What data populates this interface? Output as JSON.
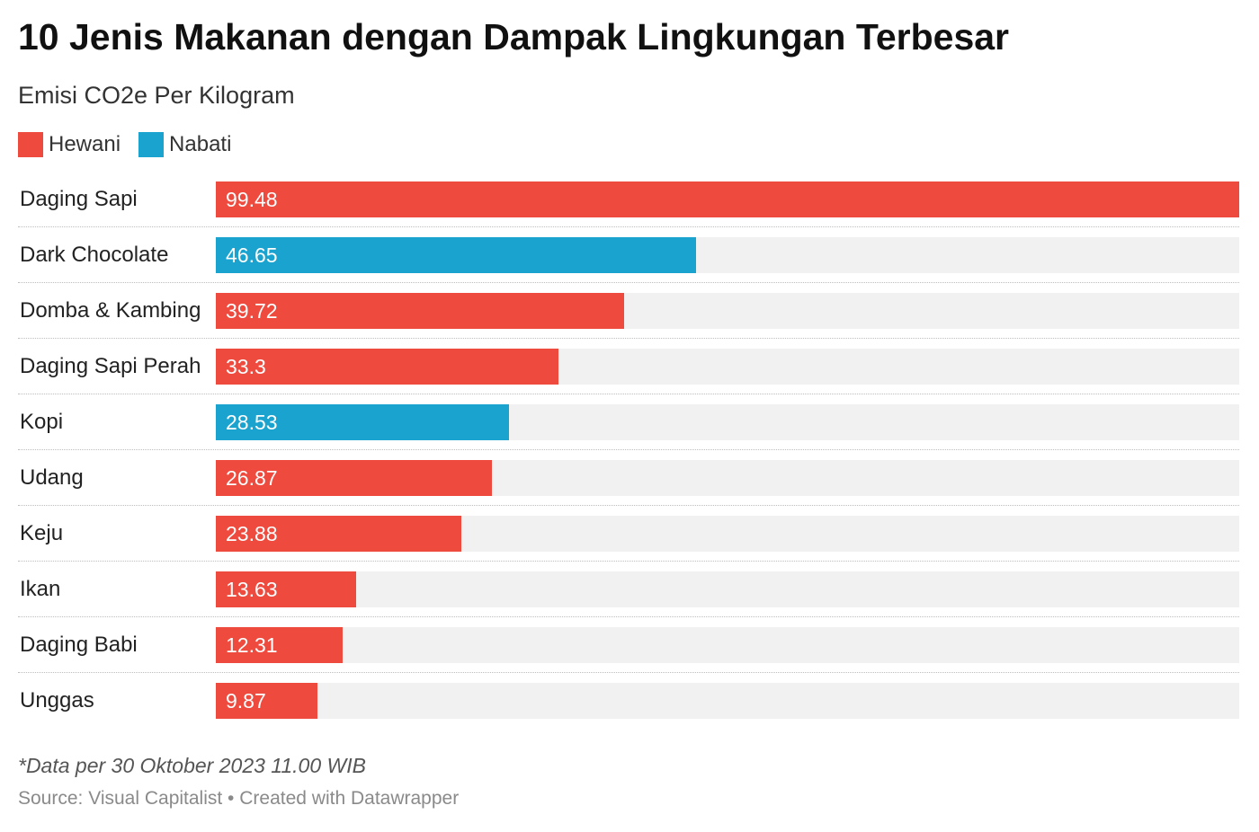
{
  "chart_data": {
    "type": "bar",
    "orientation": "horizontal",
    "title": "10 Jenis Makanan dengan Dampak Lingkungan Terbesar",
    "subtitle": "Emisi CO2e Per Kilogram",
    "legend": [
      {
        "name": "Hewani",
        "color": "#ef4a3e"
      },
      {
        "name": "Nabati",
        "color": "#1aa3cf"
      }
    ],
    "legend_position": "top-left",
    "xlim": [
      0,
      99.48
    ],
    "grid": false,
    "rows": [
      {
        "category": "Daging Sapi",
        "value": 99.48,
        "value_label": "99.48",
        "group": "Hewani"
      },
      {
        "category": "Dark Chocolate",
        "value": 46.65,
        "value_label": "46.65",
        "group": "Nabati"
      },
      {
        "category": "Domba & Kambing",
        "value": 39.72,
        "value_label": "39.72",
        "group": "Hewani"
      },
      {
        "category": "Daging Sapi Perah",
        "value": 33.3,
        "value_label": "33.3",
        "group": "Hewani"
      },
      {
        "category": "Kopi",
        "value": 28.53,
        "value_label": "28.53",
        "group": "Nabati"
      },
      {
        "category": "Udang",
        "value": 26.87,
        "value_label": "26.87",
        "group": "Hewani"
      },
      {
        "category": "Keju",
        "value": 23.88,
        "value_label": "23.88",
        "group": "Hewani"
      },
      {
        "category": "Ikan",
        "value": 13.63,
        "value_label": "13.63",
        "group": "Hewani"
      },
      {
        "category": "Daging Babi",
        "value": 12.31,
        "value_label": "12.31",
        "group": "Hewani"
      },
      {
        "category": "Unggas",
        "value": 9.87,
        "value_label": "9.87",
        "group": "Hewani"
      }
    ],
    "note": "*Data per 30 Oktober 2023 11.00 WIB",
    "source": "Source: Visual Capitalist • Created with Datawrapper",
    "track_color": "#f1f1f1"
  }
}
